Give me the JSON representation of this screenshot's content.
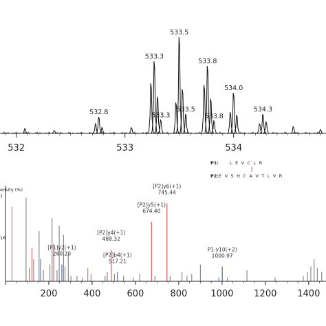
{
  "chart_data": [
    {
      "type": "line",
      "title": "",
      "xlabel": "",
      "ylabel": "",
      "xlim": [
        531.85,
        534.85
      ],
      "x_ticks": [
        "532",
        "533",
        "534"
      ],
      "x_tick_values": [
        532,
        533,
        534
      ],
      "peaks": [
        {
          "x": 532.08,
          "y": 5,
          "label": ""
        },
        {
          "x": 532.35,
          "y": 3,
          "label": ""
        },
        {
          "x": 532.73,
          "y": 10,
          "label": ""
        },
        {
          "x": 532.76,
          "y": 17,
          "label": "532.8"
        },
        {
          "x": 532.79,
          "y": 6,
          "label": ""
        },
        {
          "x": 533.06,
          "y": 6,
          "label": ""
        },
        {
          "x": 533.24,
          "y": 52,
          "label": ""
        },
        {
          "x": 533.27,
          "y": 75,
          "label": "533.3"
        },
        {
          "x": 533.3,
          "y": 38,
          "label": ""
        },
        {
          "x": 533.33,
          "y": 14,
          "label": "533.3"
        },
        {
          "x": 533.47,
          "y": 32,
          "label": ""
        },
        {
          "x": 533.5,
          "y": 100,
          "label": "533.5"
        },
        {
          "x": 533.53,
          "y": 46,
          "label": ""
        },
        {
          "x": 533.56,
          "y": 20,
          "label": "533.5"
        },
        {
          "x": 533.73,
          "y": 50,
          "label": ""
        },
        {
          "x": 533.76,
          "y": 70,
          "label": "533.8"
        },
        {
          "x": 533.79,
          "y": 36,
          "label": ""
        },
        {
          "x": 533.82,
          "y": 13,
          "label": "533.8"
        },
        {
          "x": 533.97,
          "y": 22,
          "label": ""
        },
        {
          "x": 534.0,
          "y": 42,
          "label": "534.0"
        },
        {
          "x": 534.03,
          "y": 19,
          "label": ""
        },
        {
          "x": 534.24,
          "y": 10,
          "label": ""
        },
        {
          "x": 534.27,
          "y": 20,
          "label": "534.3"
        },
        {
          "x": 534.3,
          "y": 12,
          "label": ""
        },
        {
          "x": 534.55,
          "y": 7,
          "label": ""
        },
        {
          "x": 534.8,
          "y": 4,
          "label": ""
        }
      ]
    },
    {
      "type": "bar",
      "title": "",
      "xlabel": "",
      "ylabel": "ensity (%)",
      "ylabel_top": "1",
      "ylabel_mid": "16",
      "xlim": [
        0,
        1480
      ],
      "x_ticks": [
        "200",
        "400",
        "600",
        "800",
        "1000",
        "1200",
        "1400"
      ],
      "x_tick_values": [
        200,
        400,
        600,
        800,
        1000,
        1200,
        1400
      ],
      "sequences": [
        {
          "name": "P1:",
          "residues": "L E V C L R"
        },
        {
          "name": "P2:",
          "residues": "E V S H C A V T L V R"
        }
      ],
      "annotated_peaks": [
        {
          "label": "[P1]y2(+1)",
          "mz": "260.20",
          "x": 260.2,
          "y": 9,
          "color": "#6a7fb8"
        },
        {
          "label": "[P2]y4(+1)",
          "mz": "488.32",
          "x": 488.3,
          "y": 17,
          "color": "#e07070"
        },
        {
          "label": "[P2]b4(+1)",
          "mz": "517.21",
          "x": 517.2,
          "y": 5,
          "color": "#6a7fb8"
        },
        {
          "label": "[P2]y5(+1)",
          "mz": "674.40",
          "x": 674.4,
          "y": 32,
          "color": "#e07070"
        },
        {
          "label": "[P2]y6(+1)",
          "mz": "745.44",
          "x": 745.4,
          "y": 42,
          "color": "#e07070"
        },
        {
          "label": "P1-y10(+2)",
          "mz": "1000.97",
          "x": 1001.0,
          "y": 8,
          "color": "#6a7fb8"
        }
      ],
      "other_peaks": [
        {
          "x": 30,
          "y": 40,
          "color": "#e07070"
        },
        {
          "x": 95,
          "y": 45,
          "color": "#888888"
        },
        {
          "x": 110,
          "y": 7,
          "color": "#888888"
        },
        {
          "x": 122,
          "y": 18,
          "color": "#e07070"
        },
        {
          "x": 130,
          "y": 12,
          "color": "#888888"
        },
        {
          "x": 155,
          "y": 27,
          "color": "#888888"
        },
        {
          "x": 162,
          "y": 12,
          "color": "#6a7fb8"
        },
        {
          "x": 175,
          "y": 6,
          "color": "#888888"
        },
        {
          "x": 205,
          "y": 9,
          "color": "#888888"
        },
        {
          "x": 215,
          "y": 34,
          "color": "#888888"
        },
        {
          "x": 222,
          "y": 20,
          "color": "#e07070"
        },
        {
          "x": 238,
          "y": 6,
          "color": "#888888"
        },
        {
          "x": 248,
          "y": 30,
          "color": "#888888"
        },
        {
          "x": 268,
          "y": 25,
          "color": "#888888"
        },
        {
          "x": 275,
          "y": 8,
          "color": "#888888"
        },
        {
          "x": 290,
          "y": 15,
          "color": "#888888"
        },
        {
          "x": 302,
          "y": 3,
          "color": "#888888"
        },
        {
          "x": 330,
          "y": 3,
          "color": "#888888"
        },
        {
          "x": 355,
          "y": 2,
          "color": "#888888"
        },
        {
          "x": 380,
          "y": 7,
          "color": "#e07070"
        },
        {
          "x": 395,
          "y": 4,
          "color": "#888888"
        },
        {
          "x": 460,
          "y": 3,
          "color": "#888888"
        },
        {
          "x": 470,
          "y": 5,
          "color": "#888888"
        },
        {
          "x": 503,
          "y": 4,
          "color": "#888888"
        },
        {
          "x": 545,
          "y": 3,
          "color": "#888888"
        },
        {
          "x": 590,
          "y": 2,
          "color": "#888888"
        },
        {
          "x": 620,
          "y": 4,
          "color": "#888888"
        },
        {
          "x": 690,
          "y": 3,
          "color": "#888888"
        },
        {
          "x": 760,
          "y": 3,
          "color": "#888888"
        },
        {
          "x": 815,
          "y": 5,
          "color": "#888888"
        },
        {
          "x": 838,
          "y": 3,
          "color": "#888888"
        },
        {
          "x": 860,
          "y": 4,
          "color": "#888888"
        },
        {
          "x": 900,
          "y": 9,
          "color": "#888888"
        },
        {
          "x": 985,
          "y": 2,
          "color": "#6a7fb8"
        },
        {
          "x": 1025,
          "y": 2,
          "color": "#888888"
        },
        {
          "x": 1115,
          "y": 6,
          "color": "#888888"
        },
        {
          "x": 1245,
          "y": 2,
          "color": "#888888"
        },
        {
          "x": 1375,
          "y": 3,
          "color": "#888888"
        },
        {
          "x": 1395,
          "y": 5,
          "color": "#888888"
        },
        {
          "x": 1410,
          "y": 8,
          "color": "#888888"
        },
        {
          "x": 1425,
          "y": 12,
          "color": "#888888"
        },
        {
          "x": 1440,
          "y": 7,
          "color": "#888888"
        },
        {
          "x": 1460,
          "y": 5,
          "color": "#888888"
        }
      ]
    }
  ],
  "colors": {
    "axis": "#222222",
    "spectrum": "#111111",
    "fragment_red": "#e07070",
    "fragment_blue": "#6a7fb8",
    "fragment_grey": "#888888"
  }
}
